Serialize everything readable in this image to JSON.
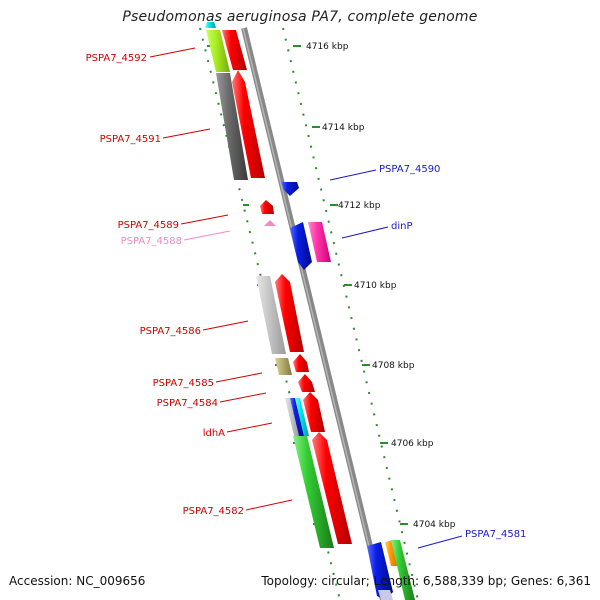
{
  "title": "Pseudomonas aeruginosa PA7, complete genome",
  "footer": {
    "accession": "Accession: NC_009656",
    "summary": "Topology: circular; Length: 6,588,339 bp; Genes: 6,361"
  },
  "scale_labels": [
    "4716 kbp",
    "4714 kbp",
    "4712 kbp",
    "4710 kbp",
    "4708 kbp",
    "4706 kbp",
    "4704 kbp"
  ],
  "gene_labels_left": [
    {
      "text": "PSPA7_4592",
      "color": "#d40000"
    },
    {
      "text": "PSPA7_4591",
      "color": "#d40000"
    },
    {
      "text": "PSPA7_4589",
      "color": "#d40000"
    },
    {
      "text": "PSPA7_4588",
      "color": "#f08cc0"
    },
    {
      "text": "PSPA7_4586",
      "color": "#d40000"
    },
    {
      "text": "PSPA7_4585",
      "color": "#d40000"
    },
    {
      "text": "PSPA7_4584",
      "color": "#d40000"
    },
    {
      "text": "ldhA",
      "color": "#d40000"
    },
    {
      "text": "PSPA7_4582",
      "color": "#d40000"
    }
  ],
  "gene_labels_right": [
    {
      "text": "PSPA7_4590",
      "color": "#1a1acc"
    },
    {
      "text": "dinP",
      "color": "#1a1acc"
    },
    {
      "text": "PSPA7_4581",
      "color": "#1a1acc"
    }
  ],
  "colors": {
    "red": "#ff0000",
    "blue": "#0a1fe6",
    "magenta": "#ff33aa",
    "green": "#33cc33",
    "gray_dark": "#707070",
    "gray_light": "#c8c8c8",
    "lime": "#aaee22",
    "olive": "#b8b070",
    "cyan": "#00e5ee",
    "orange": "#ff9900",
    "backbone": "#888888",
    "tick": "#2e8b2e"
  }
}
